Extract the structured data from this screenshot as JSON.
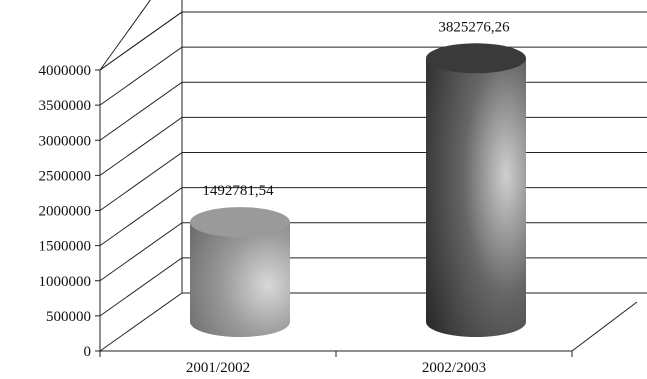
{
  "chart_data": {
    "type": "bar",
    "style": "3d-cylinder",
    "categories": [
      "2001/2002",
      "2002/2003"
    ],
    "values": [
      1492781.54,
      3825276.26
    ],
    "data_labels": [
      "1492781,54",
      "3825276,26"
    ],
    "ylim": [
      0,
      4000000
    ],
    "yticks": [
      "0",
      "500000",
      "1000000",
      "1500000",
      "2000000",
      "2500000",
      "3000000",
      "3500000",
      "4000000"
    ],
    "grid": true,
    "legend": "none",
    "colors": {
      "bar1": "#8a8a8a",
      "bar1_top": "#9a9a9a",
      "bar2": "#4a4a4a",
      "bar2_top": "#3a3a3a",
      "grid": "#222222",
      "text": "#111111"
    }
  }
}
